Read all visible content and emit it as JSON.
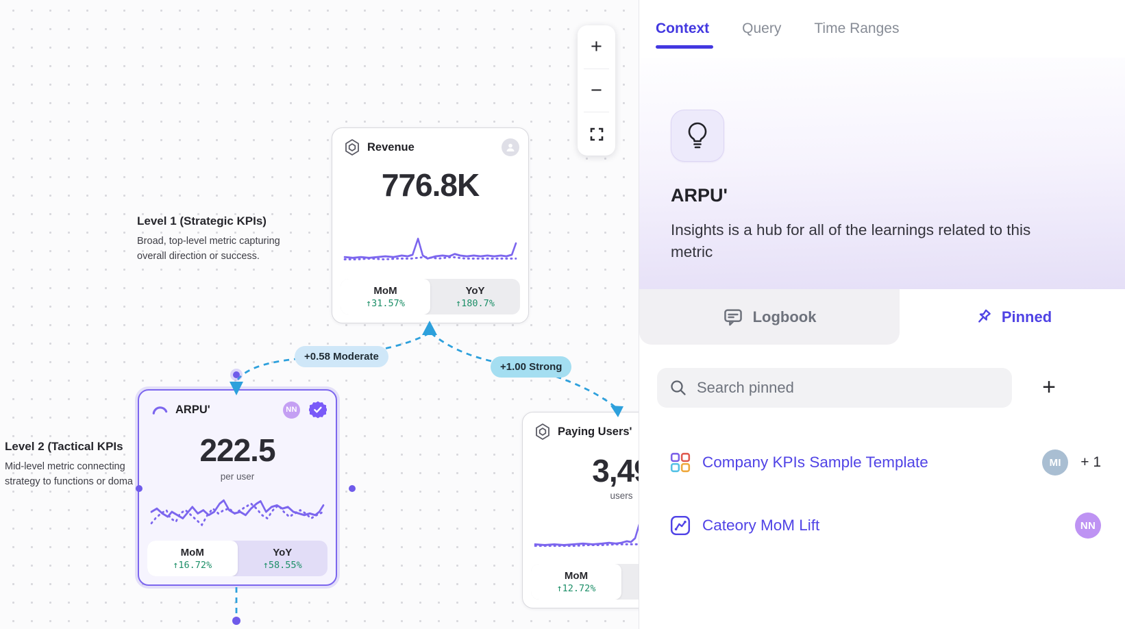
{
  "accent_colors": {
    "indigo": "#4338E0",
    "purple": "#7C66EE",
    "green": "#1D8F68",
    "edge_blue": "#2DA0DC",
    "pill_moderate_bg": "#CFE7F8",
    "pill_strong_bg": "#A4DEF1"
  },
  "panel": {
    "tabs": [
      {
        "label": "Context"
      },
      {
        "label": "Query"
      },
      {
        "label": "Time Ranges"
      }
    ],
    "header": {
      "title": "ARPU'",
      "description": "Insights is a hub for all of the learnings related to this metric"
    },
    "subtabs": {
      "logbook": "Logbook",
      "pinned": "Pinned"
    },
    "search": {
      "placeholder": "Search pinned"
    },
    "add_button": "+",
    "pinned_items": [
      {
        "label": "Company KPIs Sample Template",
        "avatar": "MI",
        "extra": "+ 1"
      },
      {
        "label": "Cateory MoM Lift",
        "avatar": "NN",
        "extra": ""
      }
    ]
  },
  "canvas": {
    "zoom_controls": {
      "zoom_in": "+",
      "zoom_out": "−"
    },
    "levels": [
      {
        "title": "Level 1 (Strategic KPIs)",
        "description_lines": [
          "Broad, top-level metric capturing",
          "overall direction or success."
        ]
      },
      {
        "title": "Level 2 (Tactical KPIs",
        "description_lines": [
          "Mid-level metric connecting",
          "strategy to functions or doma"
        ]
      }
    ],
    "edges": [
      {
        "label": "+0.58 Moderate"
      },
      {
        "label": "+1.00 Strong"
      }
    ],
    "cards": {
      "revenue": {
        "title": "Revenue",
        "value": "776.8K",
        "unit": "",
        "mom": {
          "label": "MoM",
          "value": "↑31.57%"
        },
        "yoy": {
          "label": "YoY",
          "value": "↑180.7%"
        }
      },
      "arpu": {
        "title": "ARPU'",
        "value": "222.5",
        "unit": "per user",
        "badge": "NN",
        "mom": {
          "label": "MoM",
          "value": "↑16.72%"
        },
        "yoy": {
          "label": "YoY",
          "value": "↑58.55%"
        }
      },
      "paying_users": {
        "title": "Paying Users'",
        "value": "3,49",
        "unit": "users",
        "mom": {
          "label": "MoM",
          "value": "↑12.72%"
        }
      }
    }
  },
  "sparklines": {
    "revenue": {
      "solid": [
        [
          2,
          36
        ],
        [
          14,
          37
        ],
        [
          26,
          36
        ],
        [
          38,
          37
        ],
        [
          50,
          36
        ],
        [
          62,
          35
        ],
        [
          74,
          36
        ],
        [
          86,
          34
        ],
        [
          95,
          35
        ],
        [
          102,
          33
        ],
        [
          110,
          12
        ],
        [
          117,
          34
        ],
        [
          124,
          38
        ],
        [
          136,
          35
        ],
        [
          146,
          34
        ],
        [
          156,
          35
        ],
        [
          164,
          32
        ],
        [
          172,
          34
        ],
        [
          182,
          35
        ],
        [
          192,
          34
        ],
        [
          202,
          35
        ],
        [
          212,
          34
        ],
        [
          222,
          35
        ],
        [
          232,
          34
        ],
        [
          240,
          35
        ],
        [
          248,
          33
        ],
        [
          254,
          18
        ]
      ],
      "dotted": [
        [
          2,
          39
        ],
        [
          20,
          39
        ],
        [
          40,
          38
        ],
        [
          60,
          39
        ],
        [
          80,
          38
        ],
        [
          100,
          38
        ],
        [
          110,
          37
        ],
        [
          120,
          36
        ],
        [
          130,
          37
        ],
        [
          140,
          38
        ],
        [
          150,
          37
        ],
        [
          160,
          36
        ],
        [
          170,
          37
        ],
        [
          180,
          38
        ],
        [
          190,
          38
        ],
        [
          200,
          38
        ],
        [
          210,
          38
        ],
        [
          220,
          38
        ],
        [
          230,
          38
        ],
        [
          240,
          38
        ],
        [
          254,
          38
        ]
      ]
    },
    "arpu": {
      "solid": [
        [
          2,
          26
        ],
        [
          10,
          22
        ],
        [
          18,
          28
        ],
        [
          26,
          32
        ],
        [
          32,
          26
        ],
        [
          40,
          30
        ],
        [
          48,
          34
        ],
        [
          56,
          26
        ],
        [
          62,
          20
        ],
        [
          70,
          28
        ],
        [
          78,
          24
        ],
        [
          86,
          30
        ],
        [
          94,
          26
        ],
        [
          102,
          16
        ],
        [
          108,
          12
        ],
        [
          116,
          24
        ],
        [
          124,
          28
        ],
        [
          132,
          26
        ],
        [
          140,
          30
        ],
        [
          148,
          22
        ],
        [
          156,
          16
        ],
        [
          162,
          13
        ],
        [
          170,
          26
        ],
        [
          178,
          20
        ],
        [
          186,
          18
        ],
        [
          194,
          22
        ],
        [
          202,
          20
        ],
        [
          210,
          26
        ],
        [
          218,
          28
        ],
        [
          226,
          30
        ],
        [
          234,
          28
        ],
        [
          242,
          30
        ],
        [
          248,
          26
        ],
        [
          254,
          18
        ]
      ],
      "dotted": [
        [
          2,
          40
        ],
        [
          8,
          34
        ],
        [
          16,
          28
        ],
        [
          24,
          24
        ],
        [
          30,
          34
        ],
        [
          38,
          38
        ],
        [
          44,
          28
        ],
        [
          52,
          24
        ],
        [
          60,
          30
        ],
        [
          68,
          36
        ],
        [
          76,
          42
        ],
        [
          84,
          30
        ],
        [
          92,
          22
        ],
        [
          100,
          28
        ],
        [
          108,
          24
        ],
        [
          116,
          22
        ],
        [
          124,
          28
        ],
        [
          132,
          24
        ],
        [
          140,
          20
        ],
        [
          148,
          16
        ],
        [
          156,
          22
        ],
        [
          164,
          30
        ],
        [
          172,
          34
        ],
        [
          180,
          24
        ],
        [
          188,
          18
        ],
        [
          196,
          26
        ],
        [
          204,
          32
        ],
        [
          212,
          28
        ],
        [
          220,
          24
        ],
        [
          228,
          28
        ],
        [
          236,
          34
        ],
        [
          244,
          30
        ],
        [
          254,
          26
        ]
      ]
    },
    "paying_users": {
      "solid": [
        [
          2,
          38
        ],
        [
          16,
          39
        ],
        [
          30,
          38
        ],
        [
          44,
          39
        ],
        [
          58,
          38
        ],
        [
          72,
          37
        ],
        [
          86,
          38
        ],
        [
          100,
          37
        ],
        [
          110,
          36
        ],
        [
          120,
          37
        ],
        [
          128,
          36
        ],
        [
          136,
          34
        ],
        [
          142,
          35
        ],
        [
          148,
          30
        ],
        [
          154,
          12
        ],
        [
          160,
          24
        ],
        [
          166,
          36
        ],
        [
          174,
          39
        ],
        [
          186,
          38
        ],
        [
          200,
          38
        ],
        [
          214,
          38
        ],
        [
          228,
          38
        ],
        [
          242,
          38
        ],
        [
          254,
          38
        ]
      ],
      "dotted": [
        [
          2,
          40
        ],
        [
          20,
          40
        ],
        [
          40,
          40
        ],
        [
          60,
          40
        ],
        [
          80,
          39
        ],
        [
          100,
          39
        ],
        [
          120,
          38
        ],
        [
          140,
          38
        ],
        [
          160,
          38
        ],
        [
          180,
          38
        ],
        [
          200,
          38
        ],
        [
          220,
          38
        ],
        [
          240,
          38
        ],
        [
          254,
          38
        ]
      ]
    }
  }
}
